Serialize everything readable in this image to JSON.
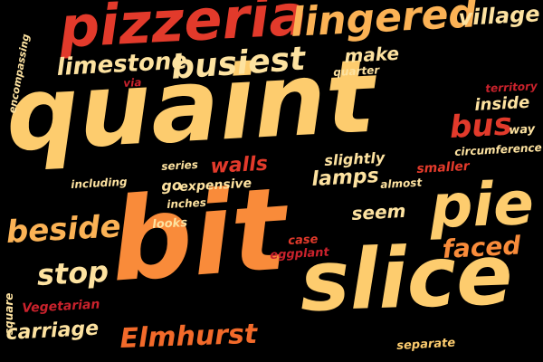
{
  "word_cloud": {
    "background": "#000000",
    "palette": [
      "#fde2a0",
      "#fdcc6e",
      "#fbb255",
      "#f98b3a",
      "#f26a2a",
      "#e23a2b",
      "#c9222c"
    ],
    "words": [
      "quaint",
      "bit",
      "slice",
      "pizzeria",
      "pie",
      "lingered",
      "busiest",
      "Elmhurst",
      "beside",
      "limestone",
      "village",
      "make",
      "quarter",
      "via",
      "bus",
      "inside",
      "territory",
      "way",
      "circumference",
      "walls",
      "series",
      "lamps",
      "slightly",
      "smaller",
      "almost",
      "expensive",
      "including",
      "go",
      "inches",
      "looks",
      "seem",
      "faced",
      "case",
      "eggplant",
      "stop",
      "square",
      "Vegetarian",
      "carriage",
      "separate",
      "encompassing"
    ]
  }
}
